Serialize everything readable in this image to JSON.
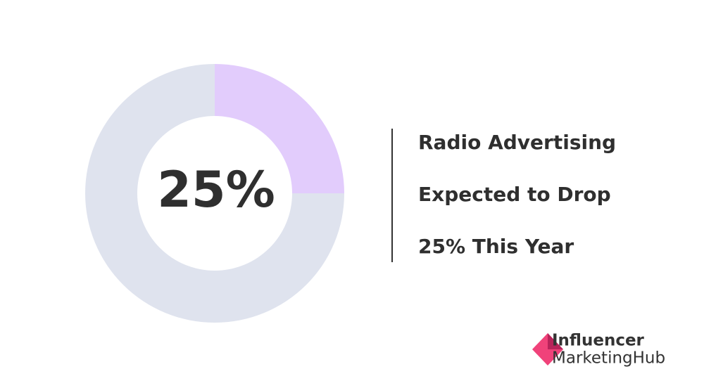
{
  "chart_data": {
    "type": "donut",
    "values": [
      25,
      75
    ],
    "value_labels": [
      "25%",
      null
    ],
    "colors": [
      "#e2ccfc",
      "#dfe3ee"
    ]
  },
  "text": {
    "lines": [
      "Radio Advertising",
      "Expected to Drop",
      "25% This Year"
    ]
  },
  "logo": {
    "line1": "Influencer",
    "line2": "MarketingHub"
  }
}
